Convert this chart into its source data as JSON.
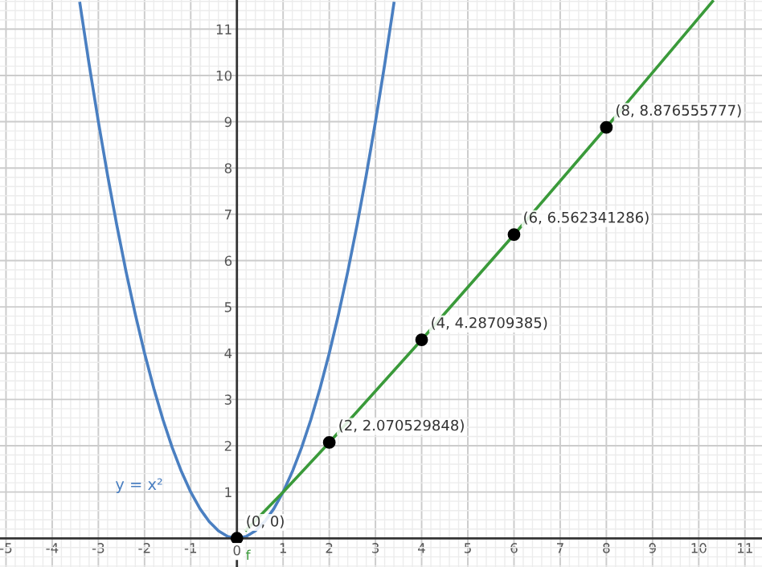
{
  "chart_data": {
    "type": "line",
    "xlim": [
      -5.13,
      11.37
    ],
    "ylim": [
      -0.62,
      11.63
    ],
    "xticks": [
      -5,
      -4,
      -3,
      -2,
      -1,
      0,
      1,
      2,
      3,
      4,
      5,
      6,
      7,
      8,
      9,
      10,
      11
    ],
    "yticks": [
      1,
      2,
      3,
      4,
      5,
      6,
      7,
      8,
      9,
      10,
      11
    ],
    "grid": true,
    "marker": "none",
    "line_style": "solid",
    "series": [
      {
        "name": "y = x²",
        "color": "#4a7fc1",
        "x": [
          -3.4,
          -3.2,
          -3,
          -2.8,
          -2.6,
          -2.4,
          -2.2,
          -2,
          -1.8,
          -1.6,
          -1.4,
          -1.2,
          -1,
          -0.8,
          -0.6,
          -0.4,
          -0.2,
          0,
          0.2,
          0.4,
          0.6,
          0.8,
          1,
          1.2,
          1.4,
          1.6,
          1.8,
          2,
          2.2,
          2.4,
          2.6,
          2.8,
          3,
          3.2,
          3.4
        ],
        "values": [
          11.56,
          10.24,
          9,
          7.84,
          6.76,
          5.76,
          4.84,
          4,
          3.24,
          2.56,
          1.96,
          1.44,
          1,
          0.64,
          0.36,
          0.16,
          0.04,
          0,
          0.04,
          0.16,
          0.36,
          0.64,
          1,
          1.44,
          1.96,
          2.56,
          3.24,
          4,
          4.84,
          5.76,
          6.76,
          7.84,
          9,
          10.24,
          11.56
        ]
      },
      {
        "color": "#3a9a3a",
        "x": [
          0.2,
          1,
          2,
          4,
          6,
          8,
          10.3
        ],
        "values": [
          0.18,
          1,
          2.07,
          4.29,
          6.56,
          8.88,
          11.6
        ]
      },
      {
        "type": "scatter",
        "marker": "circle",
        "color": "#000000",
        "x": [
          0,
          2,
          4,
          6,
          8
        ],
        "values": [
          0,
          2.070529848,
          4.28709385,
          6.562341286,
          8.876555777
        ],
        "value_labels": [
          "(0, 0)",
          "(2, 2.070529848)",
          "(4, 4.28709385)",
          "(6, 6.562341286)",
          "(8, 8.876555777)"
        ]
      }
    ],
    "annotations": [
      "f"
    ]
  }
}
